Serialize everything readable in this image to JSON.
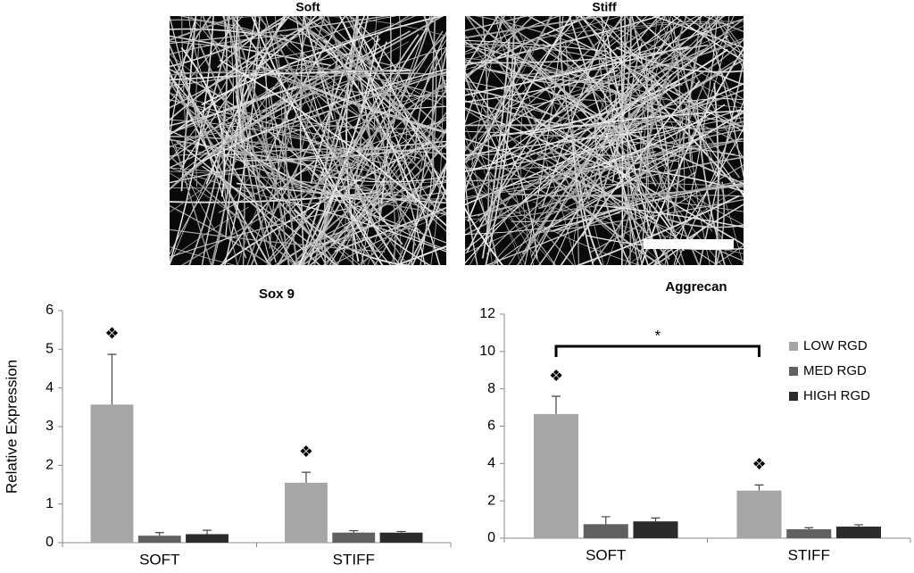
{
  "images": [
    {
      "title": "Soft"
    },
    {
      "title": "Stiff"
    }
  ],
  "chart_data": [
    {
      "type": "bar",
      "title": "Sox 9",
      "y_label": "Relative Expression",
      "categories": [
        "SOFT",
        "STIFF"
      ],
      "series": [
        {
          "color": "#a6a6a6",
          "values": [
            3.57,
            1.55
          ],
          "errors": [
            1.3,
            0.27
          ]
        },
        {
          "color": "#606060",
          "values": [
            0.18,
            0.26
          ],
          "errors": [
            0.08,
            0.05
          ]
        },
        {
          "color": "#2b2b2b",
          "values": [
            0.22,
            0.26
          ],
          "errors": [
            0.1,
            0.03
          ]
        }
      ],
      "annotations": [
        "❖",
        "❖"
      ],
      "ylim": [
        0,
        6
      ],
      "yticks": [
        0,
        1,
        2,
        3,
        4,
        5,
        6
      ],
      "legend": false
    },
    {
      "type": "bar",
      "title": "Aggrecan",
      "categories": [
        "SOFT",
        "STIFF"
      ],
      "series": [
        {
          "name": "LOW RGD",
          "color": "#a6a6a6",
          "values": [
            6.65,
            2.55
          ],
          "errors": [
            0.95,
            0.3
          ]
        },
        {
          "name": "MED RGD",
          "color": "#606060",
          "values": [
            0.75,
            0.48
          ],
          "errors": [
            0.4,
            0.08
          ]
        },
        {
          "name": "HIGH RGD",
          "color": "#2b2b2b",
          "values": [
            0.9,
            0.62
          ],
          "errors": [
            0.18,
            0.1
          ]
        }
      ],
      "annotations": [
        "❖",
        "❖"
      ],
      "significance": "*",
      "ylim": [
        0,
        12
      ],
      "yticks": [
        0,
        2,
        4,
        6,
        8,
        10,
        12
      ],
      "legend": "right"
    }
  ]
}
